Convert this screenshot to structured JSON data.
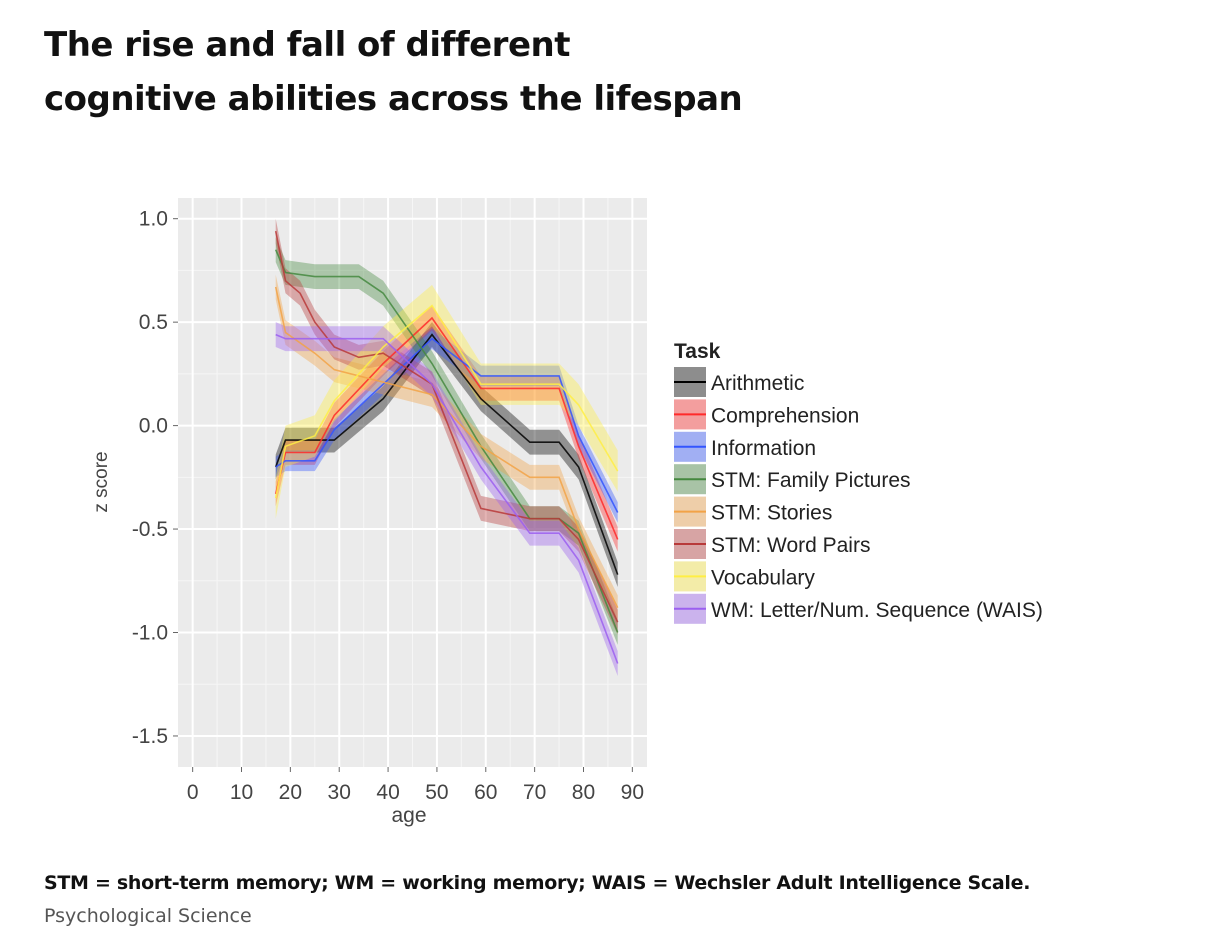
{
  "page": {
    "title_line1": "The rise and fall of different",
    "title_line2": "cognitive abilities across the lifespan",
    "footnote": "STM = short-term memory; WM = working memory; WAIS = Wechsler Adult Intelligence Scale.",
    "source": "Psychological Science"
  },
  "chart_data": {
    "type": "line",
    "title": "",
    "xlabel": "age",
    "ylabel": "z score",
    "xlim": [
      -3,
      93
    ],
    "ylim": [
      -1.65,
      1.1
    ],
    "x_ticks": [
      0,
      10,
      20,
      30,
      40,
      50,
      60,
      70,
      80,
      90
    ],
    "x_tick_labels": [
      "0",
      "10",
      "20",
      "30",
      "40",
      "50",
      "60",
      "70",
      "80",
      "90"
    ],
    "y_ticks": [
      1.0,
      0.5,
      0.0,
      -0.5,
      -1.0,
      -1.5
    ],
    "y_tick_labels": [
      "1.0",
      "0.5",
      "0.0",
      "-0.5",
      "-1.0",
      "-1.5"
    ],
    "grid": true,
    "background": "#ebebeb",
    "legend_title": "Task",
    "legend_position": "right",
    "series": [
      {
        "name": "Arithmetic",
        "color": "#000000",
        "x": [
          17,
          19,
          25,
          29,
          39,
          49,
          59,
          69,
          75,
          79,
          87
        ],
        "y": [
          -0.2,
          -0.07,
          -0.07,
          -0.07,
          0.13,
          0.44,
          0.13,
          -0.08,
          -0.08,
          -0.2,
          -0.72
        ],
        "band": 0.06
      },
      {
        "name": "Comprehension",
        "color": "#ff2a2a",
        "x": [
          17,
          19,
          25,
          29,
          39,
          49,
          59,
          69,
          75,
          79,
          87
        ],
        "y": [
          -0.33,
          -0.13,
          -0.13,
          0.05,
          0.3,
          0.52,
          0.18,
          0.18,
          0.18,
          -0.1,
          -0.55
        ],
        "band": 0.06
      },
      {
        "name": "Information",
        "color": "#3355ff",
        "x": [
          17,
          19,
          25,
          29,
          39,
          49,
          59,
          69,
          75,
          79,
          87
        ],
        "y": [
          -0.2,
          -0.17,
          -0.17,
          -0.02,
          0.2,
          0.42,
          0.24,
          0.24,
          0.24,
          -0.05,
          -0.42
        ],
        "band": 0.05
      },
      {
        "name": "STM: Family Pictures",
        "color": "#44883f",
        "x": [
          17,
          19,
          25,
          29,
          34,
          39,
          49,
          59,
          69,
          75,
          79,
          87
        ],
        "y": [
          0.85,
          0.74,
          0.72,
          0.72,
          0.72,
          0.64,
          0.3,
          -0.1,
          -0.45,
          -0.45,
          -0.52,
          -1.0
        ],
        "band": 0.06
      },
      {
        "name": "STM: Stories",
        "color": "#f2a347",
        "x": [
          17,
          19,
          25,
          29,
          39,
          49,
          59,
          69,
          75,
          79,
          87
        ],
        "y": [
          0.67,
          0.45,
          0.35,
          0.27,
          0.21,
          0.15,
          -0.1,
          -0.25,
          -0.25,
          -0.5,
          -0.88
        ],
        "band": 0.06
      },
      {
        "name": "STM: Word Pairs",
        "color": "#b83a3a",
        "x": [
          17,
          19,
          22,
          25,
          29,
          34,
          39,
          49,
          59,
          69,
          75,
          79,
          87
        ],
        "y": [
          0.94,
          0.7,
          0.64,
          0.5,
          0.38,
          0.33,
          0.35,
          0.2,
          -0.4,
          -0.45,
          -0.45,
          -0.55,
          -0.95
        ],
        "band": 0.06
      },
      {
        "name": "Vocabulary",
        "color": "#ffee44",
        "x": [
          17,
          19,
          25,
          29,
          39,
          49,
          59,
          69,
          75,
          79,
          87
        ],
        "y": [
          -0.35,
          -0.1,
          -0.05,
          0.12,
          0.38,
          0.58,
          0.2,
          0.2,
          0.2,
          0.1,
          -0.22
        ],
        "band": 0.1
      },
      {
        "name": "WM: Letter/Num. Sequence (WAIS)",
        "color": "#9b5ff0",
        "x": [
          17,
          19,
          25,
          29,
          39,
          49,
          59,
          69,
          75,
          79,
          87
        ],
        "y": [
          0.44,
          0.42,
          0.42,
          0.42,
          0.42,
          0.2,
          -0.2,
          -0.52,
          -0.52,
          -0.65,
          -1.15
        ],
        "band": 0.06
      }
    ]
  }
}
